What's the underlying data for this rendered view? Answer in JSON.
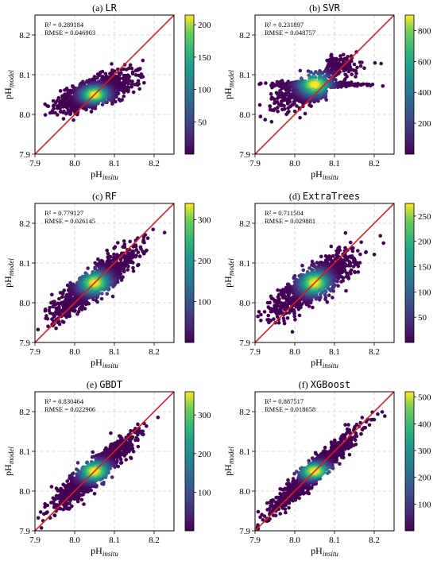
{
  "figure": {
    "colormap": "viridis",
    "identity_line_color": "#e41a1c",
    "point_radius": 2.3
  },
  "chart_data": [
    {
      "type": "scatter",
      "panel_label": "(a)",
      "title": "LR",
      "xlabel_main": "pH",
      "xlabel_sub": "insitu",
      "ylabel_main": "pH",
      "ylabel_sub": "model",
      "xlim": [
        7.9,
        8.25
      ],
      "ylim": [
        7.9,
        8.25
      ],
      "xticks": [
        "7.9",
        "8.0",
        "8.1",
        "8.2"
      ],
      "yticks": [
        "7.9",
        "8.0",
        "8.1",
        "8.2"
      ],
      "grid": true,
      "identity_line": true,
      "stats": [
        "R² = 0.289184",
        "RMSE = 0.046903"
      ],
      "colorbar": {
        "max": 215,
        "ticks": [
          "50",
          "100",
          "150",
          "200"
        ]
      },
      "center": [
        8.05,
        8.05
      ],
      "spread": [
        0.045,
        0.015
      ]
    },
    {
      "type": "scatter",
      "panel_label": "(b)",
      "title": "SVR",
      "xlabel_main": "pH",
      "xlabel_sub": "insitu",
      "ylabel_main": "pH",
      "ylabel_sub": "model",
      "xlim": [
        7.9,
        8.25
      ],
      "ylim": [
        7.9,
        8.25
      ],
      "xticks": [
        "7.9",
        "8.0",
        "8.1",
        "8.2"
      ],
      "yticks": [
        "7.9",
        "8.0",
        "8.1",
        "8.2"
      ],
      "grid": true,
      "identity_line": true,
      "stats": [
        "R² = 0.231897",
        "RMSE = 0.048757"
      ],
      "colorbar": {
        "max": 900,
        "ticks": [
          "200",
          "400",
          "600",
          "800"
        ]
      },
      "center": [
        8.05,
        8.075
      ],
      "spread": [
        0.05,
        0.02
      ]
    },
    {
      "type": "scatter",
      "panel_label": "(c)",
      "title": "RF",
      "xlabel_main": "pH",
      "xlabel_sub": "insitu",
      "ylabel_main": "pH",
      "ylabel_sub": "model",
      "xlim": [
        7.9,
        8.25
      ],
      "ylim": [
        7.9,
        8.25
      ],
      "xticks": [
        "7.9",
        "8.0",
        "8.1",
        "8.2"
      ],
      "yticks": [
        "7.9",
        "8.0",
        "8.1",
        "8.2"
      ],
      "grid": true,
      "identity_line": true,
      "stats": [
        "R² = 0.779127",
        "RMSE = 0.026145"
      ],
      "colorbar": {
        "max": 340,
        "ticks": [
          "100",
          "200",
          "300"
        ]
      },
      "center": [
        8.05,
        8.05
      ],
      "spread": [
        0.05,
        0.02
      ]
    },
    {
      "type": "scatter",
      "panel_label": "(d)",
      "title": "ExtraTrees",
      "xlabel_main": "pH",
      "xlabel_sub": "insitu",
      "ylabel_main": "pH",
      "ylabel_sub": "model",
      "xlim": [
        7.9,
        8.25
      ],
      "ylim": [
        7.9,
        8.25
      ],
      "xticks": [
        "7.9",
        "8.0",
        "8.1",
        "8.2"
      ],
      "yticks": [
        "7.9",
        "8.0",
        "8.1",
        "8.2"
      ],
      "grid": true,
      "identity_line": true,
      "stats": [
        "R² = 0.711504",
        "RMSE = 0.029881"
      ],
      "colorbar": {
        "max": 275,
        "ticks": [
          "50",
          "100",
          "150",
          "200",
          "250"
        ]
      },
      "center": [
        8.05,
        8.05
      ],
      "spread": [
        0.05,
        0.022
      ]
    },
    {
      "type": "scatter",
      "panel_label": "(e)",
      "title": "GBDT",
      "xlabel_main": "pH",
      "xlabel_sub": "insitu",
      "ylabel_main": "pH",
      "ylabel_sub": "model",
      "xlim": [
        7.9,
        8.25
      ],
      "ylim": [
        7.9,
        8.25
      ],
      "xticks": [
        "7.9",
        "8.0",
        "8.1",
        "8.2"
      ],
      "yticks": [
        "7.9",
        "8.0",
        "8.1",
        "8.2"
      ],
      "grid": true,
      "identity_line": true,
      "stats": [
        "R² = 0.830464",
        "RMSE = 0.022906"
      ],
      "colorbar": {
        "max": 360,
        "ticks": [
          "100",
          "200",
          "300"
        ]
      },
      "center": [
        8.05,
        8.05
      ],
      "spread": [
        0.05,
        0.018
      ]
    },
    {
      "type": "scatter",
      "panel_label": "(f)",
      "title": "XGBoost",
      "xlabel_main": "pH",
      "xlabel_sub": "insitu",
      "ylabel_main": "pH",
      "ylabel_sub": "model",
      "xlim": [
        7.9,
        8.25
      ],
      "ylim": [
        7.9,
        8.25
      ],
      "xticks": [
        "7.9",
        "8.0",
        "8.1",
        "8.2"
      ],
      "yticks": [
        "7.9",
        "8.0",
        "8.1",
        "8.2"
      ],
      "grid": true,
      "identity_line": true,
      "stats": [
        "R² = 0.887517",
        "RMSE = 0.018658"
      ],
      "colorbar": {
        "max": 520,
        "ticks": [
          "100",
          "200",
          "300",
          "400",
          "500"
        ]
      },
      "center": [
        8.05,
        8.05
      ],
      "spread": [
        0.05,
        0.015
      ]
    }
  ]
}
